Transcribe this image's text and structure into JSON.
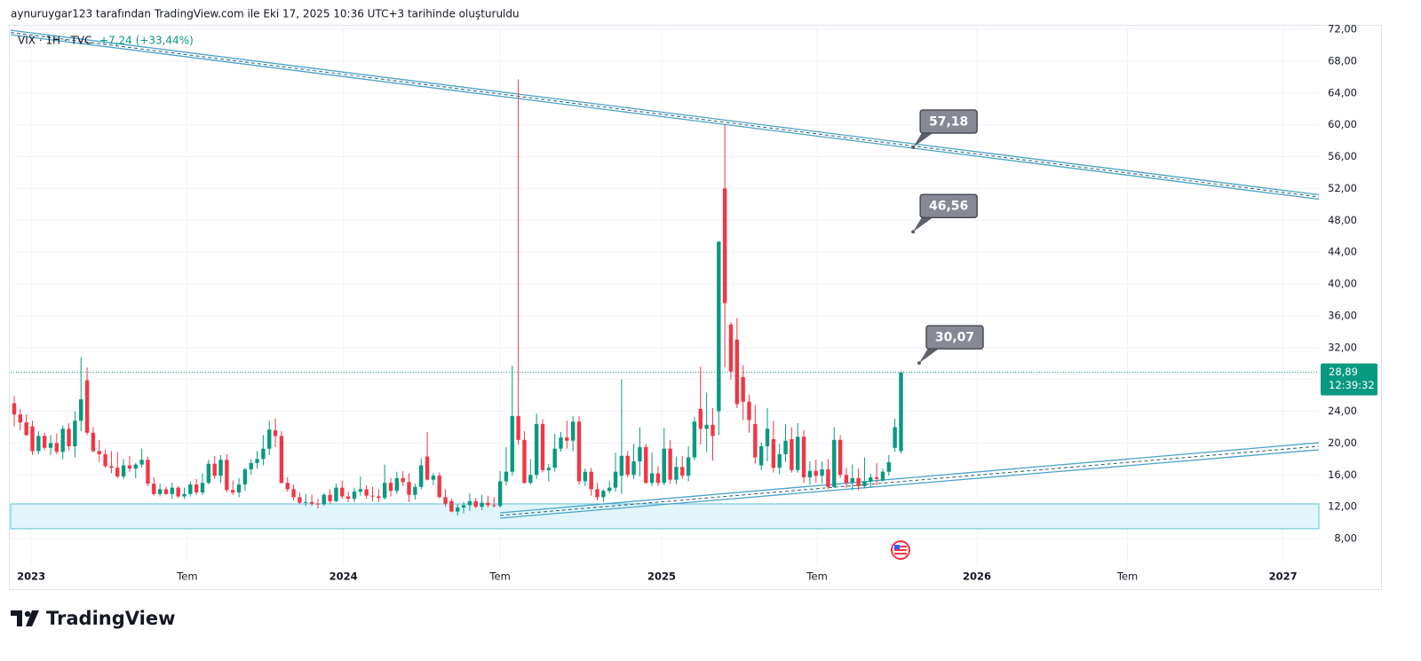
{
  "header": "aynuruygar123 tarafından TradingView.com ile Eki 17, 2025 10:36 UTC+3 tarihinde oluşturuldu",
  "chart_data": {
    "type": "candlestick",
    "symbol": "VIX · 1H · TVC",
    "change": "+7,24 (+33,44%)",
    "up_color": "#089981",
    "down_color": "#f23645",
    "candles": [
      [
        25.0,
        25.9,
        22.1,
        23.6
      ],
      [
        23.6,
        24.3,
        21.6,
        22.6
      ],
      [
        22.6,
        23.6,
        20.9,
        21.0
      ],
      [
        22.1,
        22.8,
        18.5,
        19.0
      ],
      [
        19.0,
        21.5,
        18.6,
        20.9
      ],
      [
        20.9,
        21.3,
        19.1,
        19.4
      ],
      [
        19.4,
        21.0,
        18.5,
        20.0
      ],
      [
        20.0,
        21.2,
        18.6,
        18.9
      ],
      [
        18.9,
        22.2,
        18.0,
        21.8
      ],
      [
        21.8,
        22.5,
        19.1,
        19.6
      ],
      [
        19.6,
        24.0,
        18.2,
        22.8
      ],
      [
        22.8,
        30.8,
        21.5,
        25.5
      ],
      [
        27.9,
        29.5,
        21.0,
        21.3
      ],
      [
        21.3,
        22.0,
        18.8,
        19.0
      ],
      [
        19.0,
        20.4,
        17.6,
        18.6
      ],
      [
        18.6,
        19.2,
        16.9,
        17.1
      ],
      [
        17.1,
        19.0,
        16.2,
        16.9
      ],
      [
        16.9,
        18.9,
        15.6,
        15.8
      ],
      [
        15.8,
        18.0,
        15.5,
        17.2
      ],
      [
        17.2,
        18.4,
        16.4,
        16.8
      ],
      [
        16.8,
        17.5,
        15.6,
        17.3
      ],
      [
        17.3,
        19.3,
        16.9,
        17.9
      ],
      [
        17.9,
        18.3,
        14.6,
        14.9
      ],
      [
        14.9,
        15.7,
        13.4,
        13.6
      ],
      [
        13.6,
        14.9,
        13.3,
        14.2
      ],
      [
        14.2,
        14.5,
        13.5,
        13.6
      ],
      [
        13.6,
        15.0,
        13.0,
        14.4
      ],
      [
        14.4,
        14.6,
        13.1,
        13.3
      ],
      [
        13.3,
        14.4,
        13.0,
        13.6
      ],
      [
        13.6,
        15.2,
        13.3,
        14.8
      ],
      [
        14.8,
        15.5,
        13.5,
        13.8
      ],
      [
        13.8,
        16.2,
        13.5,
        15.0
      ],
      [
        15.0,
        17.9,
        14.8,
        17.4
      ],
      [
        17.4,
        18.4,
        15.5,
        15.9
      ],
      [
        15.9,
        18.5,
        15.0,
        17.9
      ],
      [
        17.9,
        18.6,
        13.8,
        14.1
      ],
      [
        14.1,
        15.3,
        13.5,
        13.8
      ],
      [
        13.8,
        15.6,
        13.2,
        14.8
      ],
      [
        14.8,
        16.9,
        14.0,
        16.7
      ],
      [
        16.7,
        18.0,
        16.0,
        17.5
      ],
      [
        17.5,
        19.0,
        16.8,
        18.0
      ],
      [
        18.0,
        21.0,
        17.2,
        19.3
      ],
      [
        19.3,
        22.8,
        18.5,
        21.7
      ],
      [
        21.6,
        23.1,
        19.5,
        20.9
      ],
      [
        20.9,
        21.5,
        14.9,
        15.0
      ],
      [
        15.0,
        15.7,
        13.9,
        14.2
      ],
      [
        14.2,
        14.8,
        12.8,
        13.2
      ],
      [
        13.2,
        13.8,
        12.4,
        12.5
      ],
      [
        12.5,
        13.6,
        12.1,
        12.6
      ],
      [
        12.6,
        13.5,
        12.1,
        12.4
      ],
      [
        12.4,
        13.0,
        11.8,
        12.3
      ],
      [
        12.3,
        13.7,
        12.1,
        13.5
      ],
      [
        13.5,
        14.2,
        12.4,
        12.7
      ],
      [
        12.7,
        14.9,
        12.6,
        14.4
      ],
      [
        14.4,
        15.3,
        13.0,
        13.3
      ],
      [
        13.3,
        13.9,
        12.6,
        13.0
      ],
      [
        13.0,
        14.4,
        12.6,
        13.9
      ],
      [
        13.9,
        15.8,
        13.4,
        14.2
      ],
      [
        14.2,
        14.7,
        13.0,
        13.4
      ],
      [
        13.4,
        14.5,
        12.7,
        13.3
      ],
      [
        13.3,
        14.2,
        12.6,
        13.1
      ],
      [
        13.1,
        17.3,
        12.9,
        15.0
      ],
      [
        15.0,
        15.6,
        13.3,
        14.0
      ],
      [
        14.0,
        16.4,
        13.6,
        15.6
      ],
      [
        15.6,
        16.5,
        14.6,
        15.1
      ],
      [
        15.1,
        16.2,
        12.6,
        13.5
      ],
      [
        13.5,
        14.9,
        12.9,
        14.5
      ],
      [
        14.5,
        18.1,
        14.2,
        17.2
      ],
      [
        18.3,
        21.4,
        15.3,
        15.4
      ],
      [
        15.4,
        16.2,
        14.7,
        15.9
      ],
      [
        15.9,
        16.3,
        13.1,
        13.2
      ],
      [
        13.2,
        14.2,
        12.0,
        12.4
      ],
      [
        12.7,
        13.0,
        11.3,
        11.4
      ],
      [
        11.4,
        12.3,
        10.9,
        11.9
      ],
      [
        11.9,
        12.6,
        11.2,
        12.2
      ],
      [
        12.2,
        13.7,
        11.5,
        12.7
      ],
      [
        12.7,
        13.1,
        11.8,
        12.0
      ],
      [
        12.0,
        13.5,
        11.6,
        12.5
      ],
      [
        12.5,
        13.4,
        11.9,
        12.2
      ],
      [
        12.2,
        13.2,
        11.9,
        12.1
      ],
      [
        12.1,
        16.5,
        11.9,
        15.2
      ],
      [
        15.2,
        19.5,
        14.7,
        16.4
      ],
      [
        16.4,
        29.7,
        15.9,
        23.4
      ],
      [
        23.4,
        65.7,
        19.8,
        20.4
      ],
      [
        20.4,
        21.5,
        14.9,
        15.0
      ],
      [
        15.0,
        18.0,
        14.8,
        16.0
      ],
      [
        16.0,
        23.7,
        15.5,
        22.4
      ],
      [
        22.4,
        23.0,
        16.3,
        16.6
      ],
      [
        16.6,
        17.4,
        15.2,
        16.9
      ],
      [
        16.9,
        21.2,
        16.4,
        19.3
      ],
      [
        19.3,
        21.4,
        18.9,
        20.7
      ],
      [
        20.7,
        22.8,
        19.3,
        20.3
      ],
      [
        20.3,
        23.4,
        19.0,
        22.7
      ],
      [
        22.7,
        23.4,
        14.8,
        15.2
      ],
      [
        15.2,
        16.8,
        14.6,
        16.4
      ],
      [
        16.4,
        16.9,
        13.4,
        14.2
      ],
      [
        14.2,
        15.0,
        12.8,
        13.2
      ],
      [
        13.2,
        14.2,
        12.6,
        14.0
      ],
      [
        14.0,
        15.2,
        13.7,
        14.4
      ],
      [
        14.4,
        18.8,
        13.9,
        16.4
      ],
      [
        15.9,
        28.0,
        13.6,
        18.4
      ],
      [
        18.4,
        19.0,
        15.7,
        16.0
      ],
      [
        16.0,
        19.9,
        15.5,
        17.7
      ],
      [
        17.7,
        22.0,
        15.8,
        19.5
      ],
      [
        19.5,
        19.9,
        14.9,
        15.0
      ],
      [
        15.0,
        18.8,
        14.6,
        16.2
      ],
      [
        16.2,
        17.1,
        14.6,
        15.0
      ],
      [
        15.0,
        21.9,
        14.7,
        19.3
      ],
      [
        19.3,
        20.4,
        14.9,
        15.4
      ],
      [
        15.4,
        18.3,
        14.8,
        17.0
      ],
      [
        17.0,
        18.4,
        15.5,
        15.9
      ],
      [
        15.9,
        19.6,
        15.2,
        18.2
      ],
      [
        18.2,
        23.3,
        17.8,
        22.7
      ],
      [
        24.3,
        29.6,
        19.8,
        21.8
      ],
      [
        21.8,
        26.3,
        18.9,
        22.3
      ],
      [
        22.3,
        24.4,
        17.8,
        20.9
      ],
      [
        24.0,
        45.4,
        21.0,
        45.3
      ],
      [
        52.0,
        60.1,
        29.5,
        37.6
      ],
      [
        34.9,
        35.2,
        28.0,
        29.0
      ],
      [
        33.0,
        35.7,
        24.4,
        24.9
      ],
      [
        28.3,
        29.8,
        22.9,
        25.2
      ],
      [
        25.2,
        26.1,
        21.3,
        22.9
      ],
      [
        22.4,
        24.8,
        17.4,
        18.2
      ],
      [
        17.2,
        20.1,
        16.6,
        19.6
      ],
      [
        19.6,
        24.4,
        17.7,
        21.8
      ],
      [
        20.5,
        22.8,
        16.3,
        16.9
      ],
      [
        16.9,
        19.9,
        16.1,
        18.6
      ],
      [
        18.6,
        22.4,
        17.6,
        20.3
      ],
      [
        20.5,
        22.0,
        16.3,
        16.6
      ],
      [
        16.6,
        22.5,
        16.3,
        20.8
      ],
      [
        20.8,
        21.6,
        15.0,
        15.7
      ],
      [
        15.7,
        17.7,
        14.8,
        16.5
      ],
      [
        16.5,
        17.9,
        15.0,
        15.9
      ],
      [
        15.9,
        17.7,
        14.9,
        16.7
      ],
      [
        16.7,
        18.0,
        14.2,
        14.5
      ],
      [
        14.5,
        22.0,
        14.4,
        20.4
      ],
      [
        20.4,
        21.0,
        15.6,
        16.0
      ],
      [
        16.0,
        16.9,
        14.4,
        15.0
      ],
      [
        15.0,
        17.3,
        14.1,
        15.6
      ],
      [
        15.6,
        16.8,
        14.1,
        14.6
      ],
      [
        14.6,
        18.2,
        14.3,
        15.2
      ],
      [
        15.2,
        16.2,
        14.4,
        15.7
      ],
      [
        15.7,
        17.5,
        14.7,
        15.5
      ],
      [
        15.3,
        16.8,
        15.1,
        16.4
      ],
      [
        16.4,
        18.5,
        15.9,
        17.6
      ],
      [
        19.4,
        23.1,
        18.9,
        22.0
      ],
      [
        19.0,
        29.0,
        18.7,
        28.89
      ]
    ],
    "xlim": [
      -0.585,
      214.8
    ],
    "xticks": [
      {
        "value": 2.8,
        "label": "2023"
      },
      {
        "value": 28.5,
        "label": "Tem"
      },
      {
        "value": 54.2,
        "label": "2024"
      },
      {
        "value": 80.0,
        "label": "Tem"
      },
      {
        "value": 106.6,
        "label": "2025"
      },
      {
        "value": 132.2,
        "label": "Tem"
      },
      {
        "value": 158.5,
        "label": "2026"
      },
      {
        "value": 183.3,
        "label": "Tem"
      },
      {
        "value": 208.9,
        "label": "2027"
      }
    ],
    "ylim": [
      4.77,
      72.56
    ],
    "yticks": [
      {
        "value": 8,
        "label": "8,00"
      },
      {
        "value": 12,
        "label": "12,00"
      },
      {
        "value": 16,
        "label": "16,00"
      },
      {
        "value": 20,
        "label": "20,00"
      },
      {
        "value": 24,
        "label": "24,00"
      },
      {
        "value": 28,
        "label": "28,00"
      },
      {
        "value": 32,
        "label": "32,00"
      },
      {
        "value": 36,
        "label": "36,00"
      },
      {
        "value": 40,
        "label": "40,00"
      },
      {
        "value": 44,
        "label": "44,00"
      },
      {
        "value": 48,
        "label": "48,00"
      },
      {
        "value": 52,
        "label": "52,00"
      },
      {
        "value": 56,
        "label": "56,00"
      },
      {
        "value": 60,
        "label": "60,00"
      },
      {
        "value": 64,
        "label": "64,00"
      },
      {
        "value": 68,
        "label": "68,00"
      },
      {
        "value": 72,
        "label": "72,00"
      }
    ],
    "grid": true,
    "last_price": {
      "value": 28.89,
      "label": "28,89"
    },
    "countdown": "12:39:32",
    "callouts": [
      {
        "x": 148.0,
        "value": 57.18,
        "label": "57,18"
      },
      {
        "x": 148.0,
        "value": 46.56,
        "label": "46,56"
      },
      {
        "x": 149.0,
        "value": 30.07,
        "label": "30,07"
      }
    ],
    "trend_lines": [
      {
        "x": [
          -0.585,
          214.8
        ],
        "y": [
          71.6,
          50.93
        ],
        "color": "#4aa3c9"
      },
      {
        "x": [
          80.0,
          214.8
        ],
        "y": [
          11.24,
          20.05
        ],
        "color": "#4aa3c9"
      },
      {
        "x": [
          80.0,
          214.8
        ],
        "y": [
          10.57,
          19.16
        ],
        "color": "#4aa3c9"
      }
    ],
    "zone": {
      "y": [
        9.24,
        12.36
      ],
      "color": "#e0f6fa",
      "border": "#5cc4d6"
    }
  },
  "footer": {
    "brand": "TradingView"
  }
}
